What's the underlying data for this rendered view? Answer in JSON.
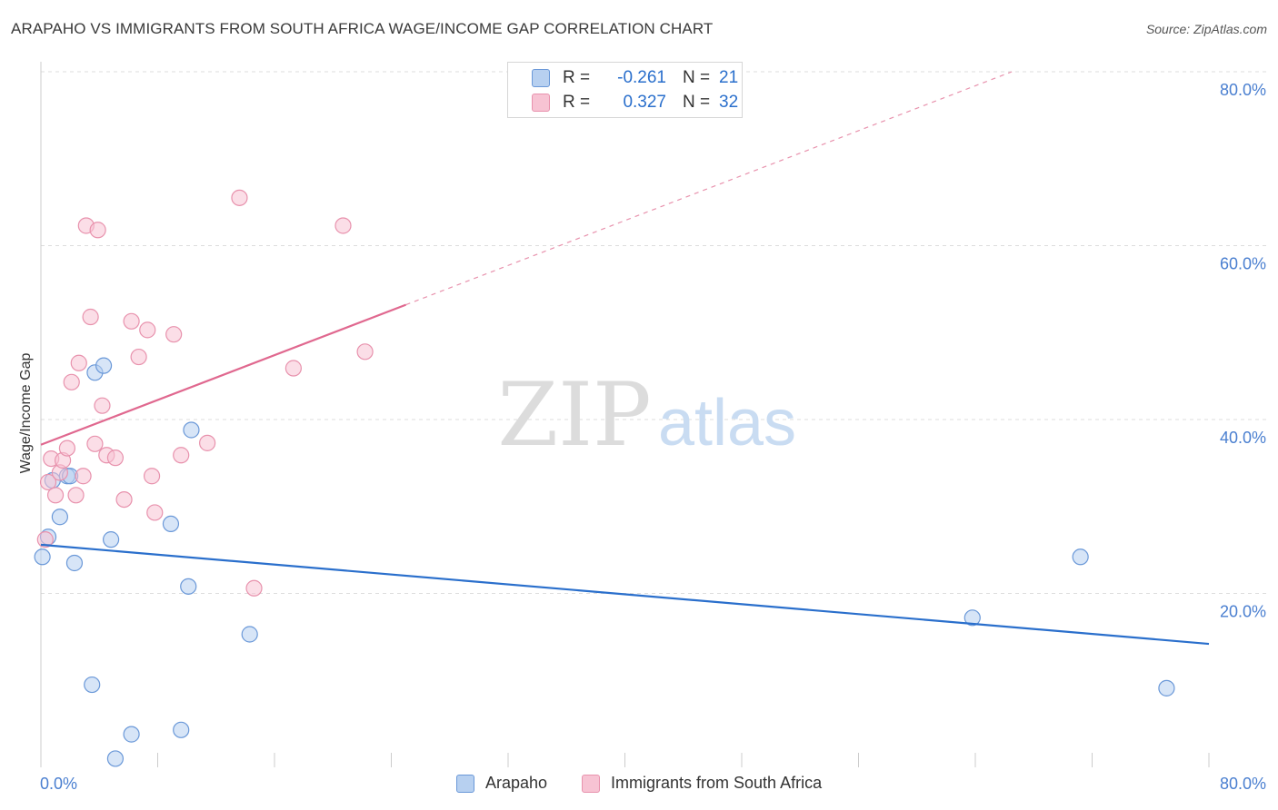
{
  "title": "ARAPAHO VS IMMIGRANTS FROM SOUTH AFRICA WAGE/INCOME GAP CORRELATION CHART",
  "source": "Source: ZipAtlas.com",
  "watermark": {
    "zip": "ZIP",
    "atlas": "atlas"
  },
  "legend_top": [
    {
      "r_label": "R =",
      "r_value": "-0.261",
      "n_label": "N =",
      "n_value": "21"
    },
    {
      "r_label": "R =",
      "r_value": "0.327",
      "n_label": "N =",
      "n_value": "32"
    }
  ],
  "legend_bottom": [
    {
      "label": "Arapaho"
    },
    {
      "label": "Immigrants from South Africa"
    }
  ],
  "colors": {
    "arapaho_fill": "#b7d0f0",
    "arapaho_stroke": "#6a98d8",
    "arapaho_line": "#2a6fcc",
    "sa_fill": "#f7c3d3",
    "sa_stroke": "#e892ad",
    "sa_line": "#e0688f",
    "axis_text": "#4a7fd0",
    "grid": "#dddddd"
  },
  "chart_data": {
    "type": "scatter",
    "title": "ARAPAHO VS IMMIGRANTS FROM SOUTH AFRICA WAGE/INCOME GAP CORRELATION CHART",
    "xlabel": "",
    "ylabel": "Wage/Income Gap",
    "xlim": [
      0,
      80
    ],
    "ylim": [
      0,
      80
    ],
    "x_tick_labels": [
      "0.0%",
      "80.0%"
    ],
    "y_tick_labels": [
      "20.0%",
      "40.0%",
      "60.0%",
      "80.0%"
    ],
    "y_ticks": [
      20,
      40,
      60,
      80
    ],
    "grid": true,
    "series": [
      {
        "name": "Arapaho",
        "points": [
          [
            0.1,
            24.2
          ],
          [
            0.5,
            26.5
          ],
          [
            0.8,
            33.0
          ],
          [
            1.3,
            28.8
          ],
          [
            1.8,
            33.5
          ],
          [
            2.3,
            23.5
          ],
          [
            3.7,
            45.4
          ],
          [
            4.3,
            46.2
          ],
          [
            4.8,
            26.2
          ],
          [
            3.5,
            9.5
          ],
          [
            5.1,
            1.0
          ],
          [
            6.2,
            3.8
          ],
          [
            8.9,
            28.0
          ],
          [
            9.6,
            4.3
          ],
          [
            10.1,
            20.8
          ],
          [
            10.3,
            38.8
          ],
          [
            14.3,
            15.3
          ],
          [
            63.8,
            17.2
          ],
          [
            71.2,
            24.2
          ],
          [
            77.1,
            9.1
          ],
          [
            2.0,
            33.5
          ]
        ],
        "trend": {
          "x": [
            0,
            80
          ],
          "y": [
            25.6,
            14.2
          ]
        }
      },
      {
        "name": "Immigrants from South Africa",
        "points": [
          [
            0.3,
            26.2
          ],
          [
            0.5,
            32.8
          ],
          [
            0.7,
            35.5
          ],
          [
            1.0,
            31.3
          ],
          [
            1.3,
            33.9
          ],
          [
            1.5,
            35.3
          ],
          [
            1.8,
            36.7
          ],
          [
            2.1,
            44.3
          ],
          [
            2.4,
            31.3
          ],
          [
            2.6,
            46.5
          ],
          [
            2.9,
            33.5
          ],
          [
            3.1,
            62.3
          ],
          [
            3.4,
            51.8
          ],
          [
            3.7,
            37.2
          ],
          [
            3.9,
            61.8
          ],
          [
            4.2,
            41.6
          ],
          [
            4.5,
            35.9
          ],
          [
            5.1,
            35.6
          ],
          [
            5.7,
            30.8
          ],
          [
            6.2,
            51.3
          ],
          [
            6.7,
            47.2
          ],
          [
            7.3,
            50.3
          ],
          [
            7.6,
            33.5
          ],
          [
            7.8,
            29.3
          ],
          [
            9.1,
            49.8
          ],
          [
            9.6,
            35.9
          ],
          [
            11.4,
            37.3
          ],
          [
            13.6,
            65.5
          ],
          [
            14.6,
            20.6
          ],
          [
            17.3,
            45.9
          ],
          [
            20.7,
            62.3
          ],
          [
            22.2,
            47.8
          ]
        ],
        "trend": {
          "x": [
            0,
            25
          ],
          "y": [
            37.1,
            53.2
          ]
        },
        "trend_extension": {
          "x": [
            25,
            66.5
          ],
          "y": [
            53.2,
            80
          ]
        }
      }
    ]
  }
}
